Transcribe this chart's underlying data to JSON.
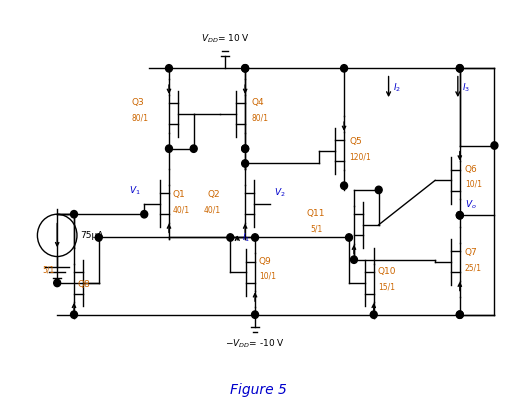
{
  "title": "Figure 5",
  "vdd_text": "$V_{DD}$= 10 V",
  "vss_text": "$-V_{DD}$= -10 V",
  "bg": "#ffffff",
  "lc": "#000000",
  "oc": "#cc6600",
  "bc": "#0000cc",
  "figsize": [
    5.17,
    3.97
  ],
  "dpi": 100,
  "lw": 1.0,
  "ts": 6.5
}
